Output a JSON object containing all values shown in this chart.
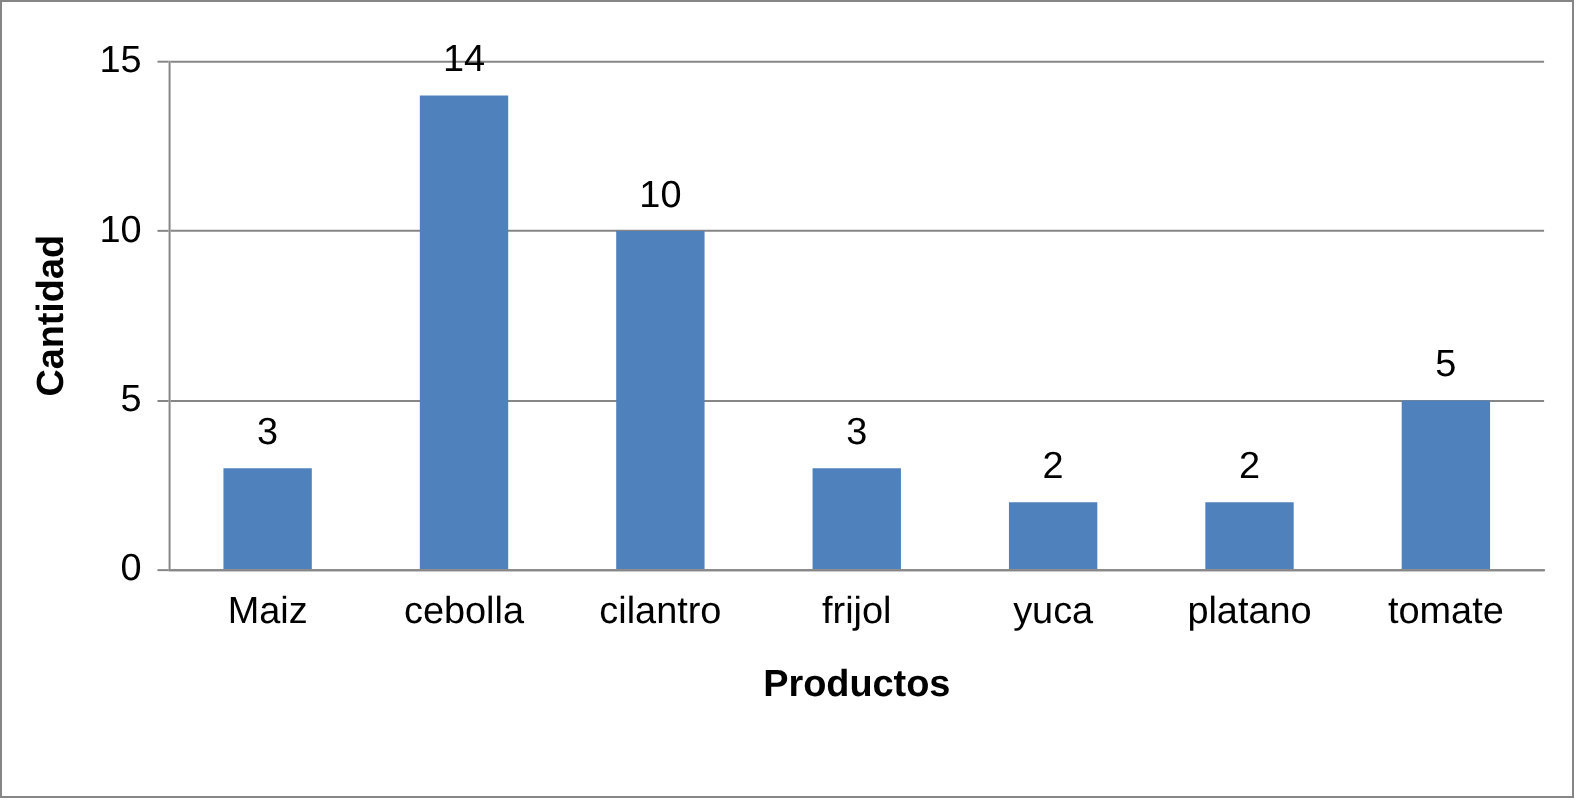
{
  "chart_data": {
    "type": "bar",
    "xlabel": "Productos",
    "ylabel": "Cantidad",
    "categories": [
      "Maiz",
      "cebolla",
      "cilantro",
      "frijol",
      "yuca",
      "platano",
      "tomate"
    ],
    "values": [
      3,
      14,
      10,
      3,
      2,
      2,
      5
    ],
    "color": "#4f81bd",
    "ylim": [
      0,
      15
    ],
    "yticks": [
      0,
      5,
      10,
      15
    ],
    "grid": "y",
    "data_labels": true
  }
}
